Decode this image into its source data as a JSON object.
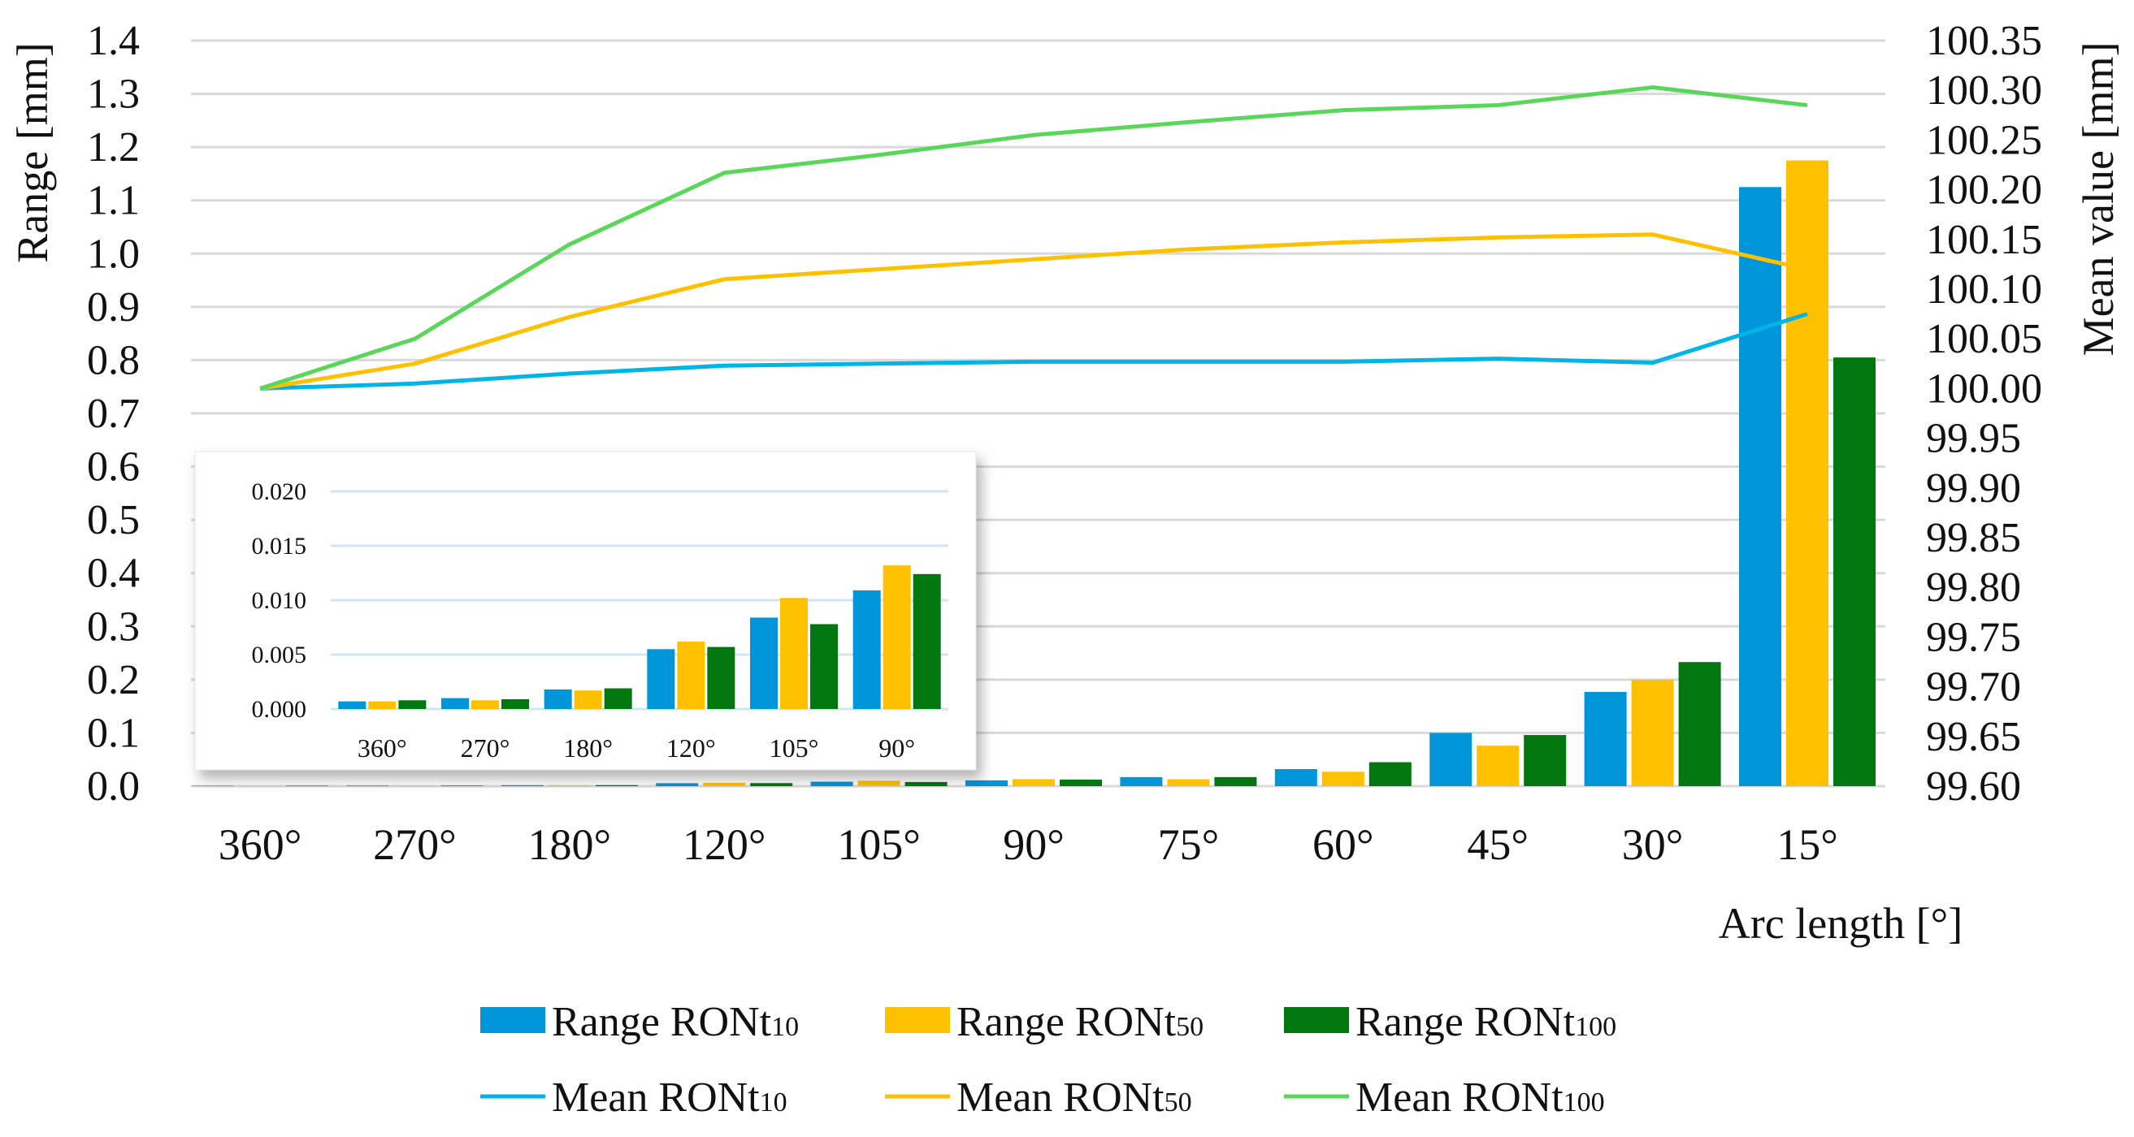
{
  "chart_data": {
    "type": "bar+line",
    "categories": [
      "360°",
      "270°",
      "180°",
      "120°",
      "105°",
      "90°",
      "75°",
      "60°",
      "45°",
      "30°",
      "15°"
    ],
    "xlabel": "Arc length [°]",
    "ylabel": "Range [mm]",
    "y2label": "Mean value [mm]",
    "ylim": [
      0,
      1.4
    ],
    "y2lim": [
      99.6,
      100.35
    ],
    "yticks": [
      "0.0",
      "0.1",
      "0.2",
      "0.3",
      "0.4",
      "0.5",
      "0.6",
      "0.7",
      "0.8",
      "0.9",
      "1.0",
      "1.1",
      "1.2",
      "1.3",
      "1.4"
    ],
    "y2ticks": [
      "99.60",
      "99.65",
      "99.70",
      "99.75",
      "99.80",
      "99.85",
      "99.90",
      "99.95",
      "100.00",
      "100.05",
      "100.10",
      "100.15",
      "100.20",
      "100.25",
      "100.30",
      "100.35"
    ],
    "grid": true,
    "legend_position": "bottom",
    "bar_series": [
      {
        "name": "Range RONt",
        "sub": "10",
        "color": "#0096d9",
        "values": [
          0.0007,
          0.001,
          0.0018,
          0.0055,
          0.0084,
          0.0109,
          0.017,
          0.032,
          0.1,
          0.177,
          1.125
        ]
      },
      {
        "name": "Range RONt",
        "sub": "50",
        "color": "#ffc000",
        "values": [
          0.0007,
          0.0008,
          0.0017,
          0.0062,
          0.0102,
          0.0132,
          0.013,
          0.027,
          0.076,
          0.2,
          1.175
        ]
      },
      {
        "name": "Range RONt",
        "sub": "100",
        "color": "#00780f",
        "values": [
          0.0008,
          0.0009,
          0.0019,
          0.0057,
          0.0078,
          0.0124,
          0.017,
          0.045,
          0.096,
          0.233,
          0.805
        ]
      }
    ],
    "line_series": [
      {
        "name": "Mean RONt",
        "sub": "10",
        "color": "#00b4e6",
        "values": [
          100.0,
          100.005,
          100.015,
          100.023,
          100.025,
          100.027,
          100.027,
          100.027,
          100.03,
          100.026,
          100.075
        ]
      },
      {
        "name": "Mean RONt",
        "sub": "50",
        "color": "#ffc000",
        "values": [
          100.0,
          100.025,
          100.072,
          100.11,
          100.12,
          100.13,
          100.14,
          100.147,
          100.152,
          100.155,
          100.12
        ]
      },
      {
        "name": "Mean RONt",
        "sub": "100",
        "color": "#5ad75a",
        "values": [
          100.0,
          100.05,
          100.145,
          100.217,
          100.235,
          100.255,
          100.268,
          100.28,
          100.285,
          100.303,
          100.285
        ]
      }
    ],
    "inset": {
      "type": "bar",
      "categories": [
        "360°",
        "270°",
        "180°",
        "120°",
        "105°",
        "90°"
      ],
      "ylim": [
        0,
        0.02
      ],
      "yticks": [
        "0.000",
        "0.005",
        "0.010",
        "0.015",
        "0.020"
      ],
      "series_values": [
        [
          0.0007,
          0.001,
          0.0018,
          0.0055,
          0.0084,
          0.0109
        ],
        [
          0.0007,
          0.0008,
          0.0017,
          0.0062,
          0.0102,
          0.0132
        ],
        [
          0.0008,
          0.0009,
          0.0019,
          0.0057,
          0.0078,
          0.0124
        ]
      ]
    }
  }
}
